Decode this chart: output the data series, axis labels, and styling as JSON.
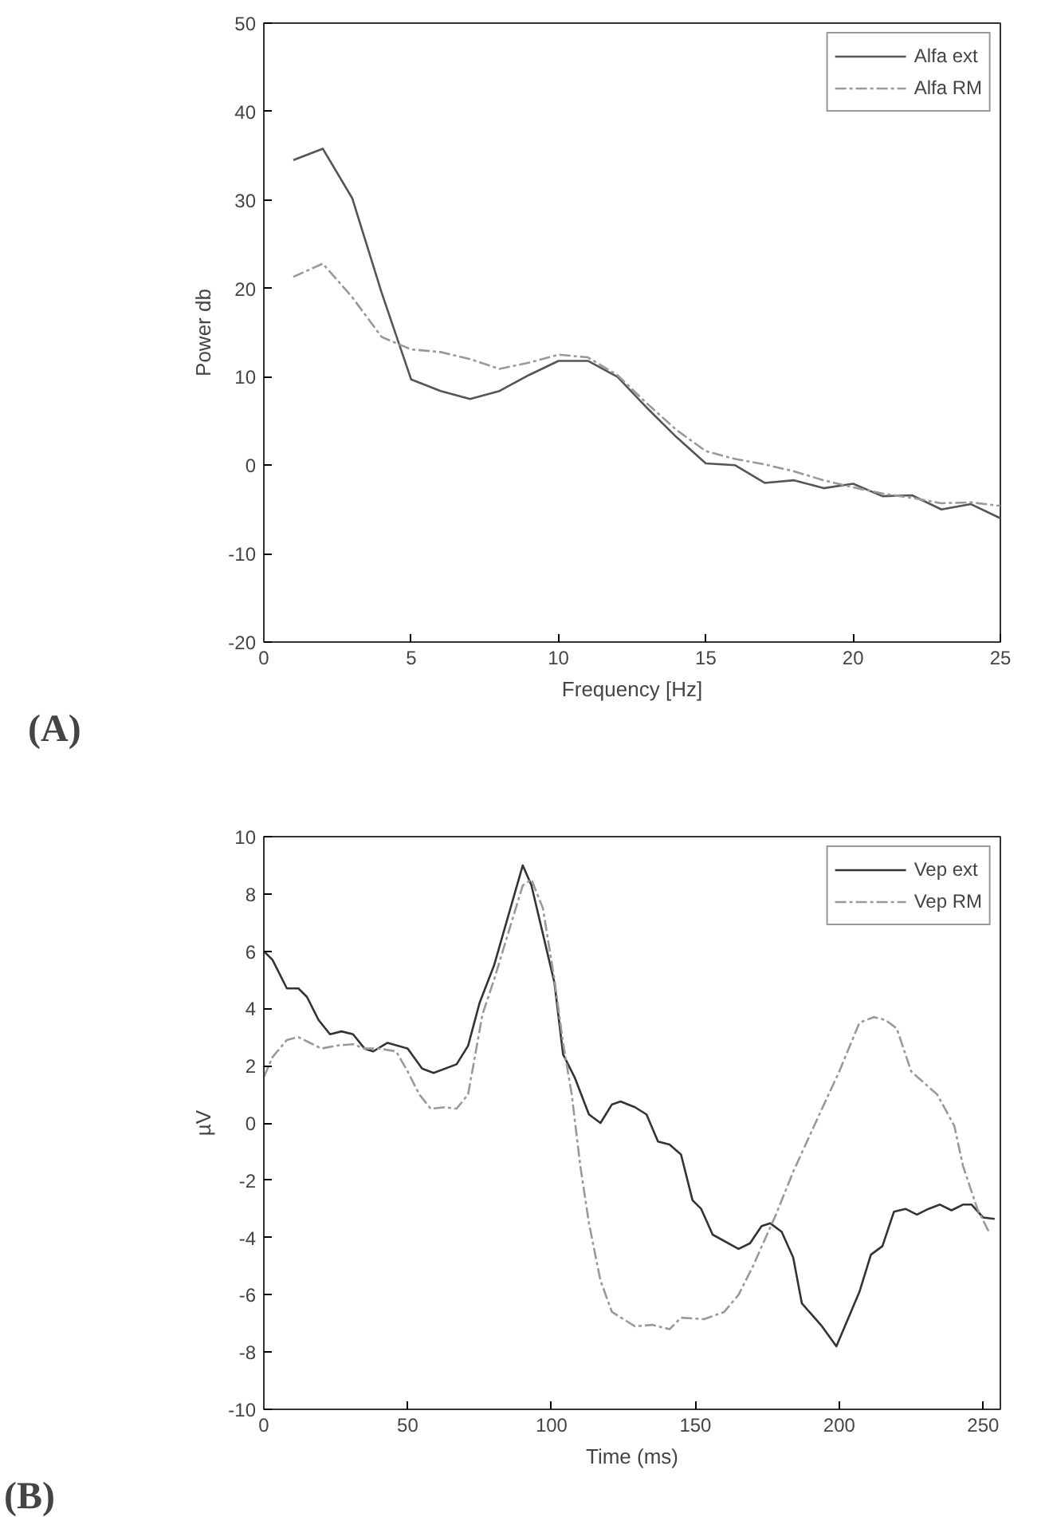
{
  "chart_data": [
    {
      "type": "line",
      "xlabel": "Frequency [Hz]",
      "ylabel": "Power db",
      "annotations": [
        "(A)"
      ],
      "xlim": [
        0,
        25
      ],
      "ylim": [
        -20,
        50
      ],
      "xticks": [
        0,
        5,
        10,
        15,
        20,
        25
      ],
      "yticks": [
        -20,
        -10,
        0,
        10,
        20,
        30,
        40,
        50
      ],
      "grid": false,
      "legend": "top right",
      "x": [
        1,
        2,
        3,
        4,
        5,
        6,
        7,
        8,
        9,
        10,
        11,
        12,
        13,
        14,
        15,
        16,
        17,
        18,
        19,
        20,
        21,
        22,
        23,
        24,
        25
      ],
      "series": [
        {
          "name": "Alfa ext",
          "color": "#555555",
          "line_style": "solid",
          "values": [
            34.5,
            35.8,
            30.2,
            19.5,
            9.7,
            8.4,
            7.5,
            8.4,
            10.2,
            11.8,
            11.8,
            10.0,
            6.5,
            3.2,
            0.2,
            0,
            -2,
            -1.7,
            -2.6,
            -2.1,
            -3.5,
            -3.4,
            -5,
            -4.4,
            -6
          ]
        },
        {
          "name": "Alfa RM",
          "color": "#999999",
          "line_style": "dashdot",
          "values": [
            21.3,
            22.8,
            19,
            14.5,
            13.1,
            12.8,
            12.0,
            10.9,
            11.6,
            12.5,
            12.2,
            10.2,
            7,
            4,
            1.6,
            0.7,
            0.1,
            -0.7,
            -1.7,
            -2.5,
            -3.2,
            -3.7,
            -4.3,
            -4.2,
            -4.6
          ]
        }
      ]
    },
    {
      "type": "line",
      "xlabel": "Time (ms)",
      "ylabel": "µV",
      "annotations": [
        "(B)"
      ],
      "xlim": [
        0,
        256
      ],
      "ylim": [
        -10,
        10
      ],
      "xticks": [
        0,
        50,
        100,
        150,
        200,
        250
      ],
      "yticks": [
        -10,
        -8,
        -6,
        -4,
        -2,
        0,
        2,
        4,
        6,
        8,
        10
      ],
      "grid": false,
      "legend": "top right",
      "series": [
        {
          "name": "Vep ext",
          "color": "#333333",
          "line_style": "solid",
          "x": [
            0,
            3,
            8,
            12,
            15,
            19,
            23,
            27,
            31,
            35,
            38,
            43,
            50,
            55,
            59,
            67,
            71,
            75,
            80,
            90,
            93,
            101,
            104,
            108,
            113,
            117,
            121,
            124,
            129,
            133,
            137,
            141,
            145,
            149,
            152,
            156,
            165,
            169,
            173,
            176,
            180,
            184,
            187,
            194,
            199,
            207,
            211,
            215,
            219,
            223,
            227,
            231,
            235,
            239,
            243,
            246,
            250,
            254
          ],
          "values": [
            6.0,
            5.7,
            4.7,
            4.7,
            4.4,
            3.6,
            3.1,
            3.2,
            3.1,
            2.6,
            2.5,
            2.8,
            2.6,
            1.9,
            1.75,
            2.05,
            2.7,
            4.2,
            5.5,
            9.0,
            8.3,
            4.9,
            2.4,
            1.6,
            0.3,
            0,
            0.65,
            0.75,
            0.55,
            0.3,
            -0.65,
            -0.75,
            -1.1,
            -2.7,
            -3.0,
            -3.9,
            -4.4,
            -4.2,
            -3.6,
            -3.5,
            -3.8,
            -4.7,
            -6.3,
            -7.1,
            -7.8,
            -5.9,
            -4.6,
            -4.3,
            -3.1,
            -3.0,
            -3.2,
            -3.0,
            -2.85,
            -3.05,
            -2.85,
            -2.85,
            -3.3,
            -3.35
          ]
        },
        {
          "name": "Vep RM",
          "color": "#999999",
          "line_style": "dashdot",
          "x": [
            0,
            3,
            8,
            12,
            16,
            20,
            25,
            31,
            35,
            40,
            46,
            50,
            54,
            58,
            63,
            67,
            71,
            76,
            80,
            90,
            93,
            97,
            101,
            104,
            107,
            110,
            113,
            117,
            121,
            129,
            135,
            141,
            145,
            153,
            160,
            165,
            170,
            178,
            184,
            189,
            194,
            200,
            207,
            212,
            216,
            220,
            225,
            234,
            240,
            243,
            248,
            252
          ],
          "values": [
            1.6,
            2.3,
            2.9,
            3.0,
            2.8,
            2.6,
            2.7,
            2.75,
            2.6,
            2.6,
            2.5,
            1.8,
            1.0,
            0.5,
            0.55,
            0.5,
            1.0,
            3.8,
            5.0,
            8.3,
            8.5,
            7.5,
            5.0,
            2.8,
            1.0,
            -1.5,
            -3.5,
            -5.5,
            -6.6,
            -7.1,
            -7.05,
            -7.2,
            -6.8,
            -6.85,
            -6.6,
            -6,
            -5,
            -3.2,
            -1.7,
            -0.6,
            0.5,
            1.8,
            3.5,
            3.7,
            3.6,
            3.3,
            1.8,
            1.0,
            -0.1,
            -1.5,
            -3,
            -3.8
          ]
        }
      ]
    }
  ]
}
